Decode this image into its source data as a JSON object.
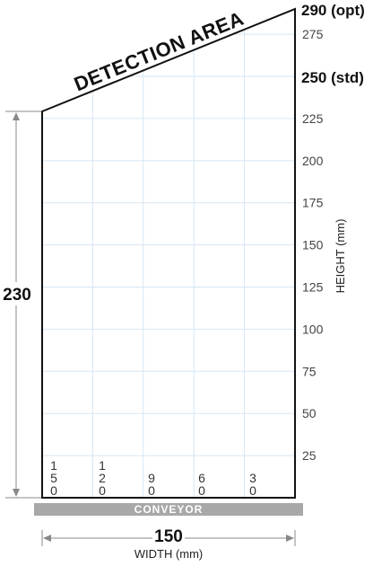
{
  "diagram": {
    "title": "DETECTION AREA",
    "y_axis": {
      "label": "HEIGHT (mm)",
      "ticks": [
        25,
        50,
        75,
        100,
        125,
        150,
        175,
        200,
        225,
        275
      ],
      "std_label": "250 (std)",
      "opt_label": "290 (opt)"
    },
    "x_axis": {
      "label": "WIDTH (mm)",
      "ticks": [
        "150",
        "120",
        "90",
        "60",
        "30"
      ]
    },
    "left_height_label": "230",
    "width_dimension_label": "150",
    "conveyor_label": "CONVEYOR",
    "colors": {
      "grid": "#d6e6f3",
      "outline": "#111111",
      "conveyor": "#a8a8a8",
      "dimension": "#888888"
    }
  }
}
